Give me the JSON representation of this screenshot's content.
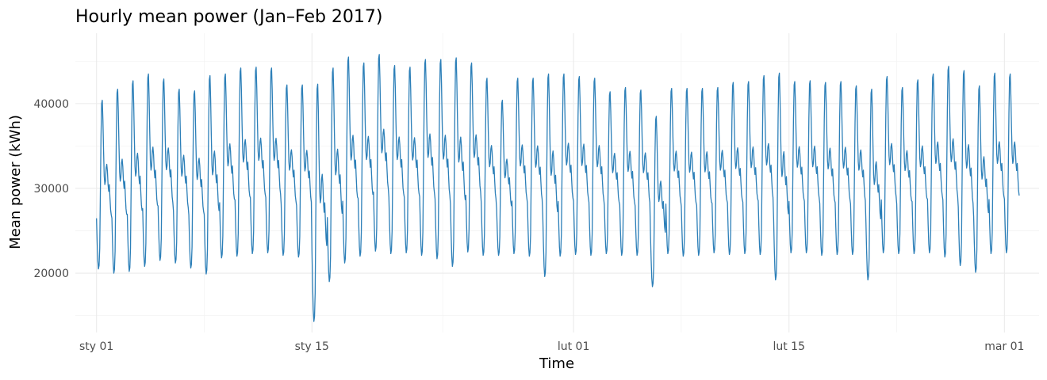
{
  "chart_data": {
    "type": "line",
    "title": "Hourly mean power (Jan–Feb 2017)",
    "xlabel": "Time",
    "ylabel": "Mean power (kWh)",
    "x_ticks": [
      {
        "date": "2017-01-01",
        "label": "sty 01"
      },
      {
        "date": "2017-01-15",
        "label": "sty 15"
      },
      {
        "date": "2017-02-01",
        "label": "lut 01"
      },
      {
        "date": "2017-02-15",
        "label": "lut 15"
      },
      {
        "date": "2017-03-01",
        "label": "mar 01"
      }
    ],
    "xlim": [
      "2016-12-30T15:00",
      "2017-03-03T06:00"
    ],
    "y_ticks": [
      20000,
      30000,
      40000
    ],
    "ylim": [
      13000,
      48300
    ],
    "grid": true,
    "color": "#2c7fb8",
    "series": [
      {
        "frequency": "daily (daily minimum and maximum of the hourly means, estimated)",
        "x": [
          "2017-01-01",
          "2017-01-02",
          "2017-01-03",
          "2017-01-04",
          "2017-01-05",
          "2017-01-06",
          "2017-01-07",
          "2017-01-08",
          "2017-01-09",
          "2017-01-10",
          "2017-01-11",
          "2017-01-12",
          "2017-01-13",
          "2017-01-14",
          "2017-01-15",
          "2017-01-16",
          "2017-01-17",
          "2017-01-18",
          "2017-01-19",
          "2017-01-20",
          "2017-01-21",
          "2017-01-22",
          "2017-01-23",
          "2017-01-24",
          "2017-01-25",
          "2017-01-26",
          "2017-01-27",
          "2017-01-28",
          "2017-01-29",
          "2017-01-30",
          "2017-01-31",
          "2017-02-01",
          "2017-02-02",
          "2017-02-03",
          "2017-02-04",
          "2017-02-05",
          "2017-02-06",
          "2017-02-07",
          "2017-02-08",
          "2017-02-09",
          "2017-02-10",
          "2017-02-11",
          "2017-02-12",
          "2017-02-13",
          "2017-02-14",
          "2017-02-15",
          "2017-02-16",
          "2017-02-17",
          "2017-02-18",
          "2017-02-19",
          "2017-02-20",
          "2017-02-21",
          "2017-02-22",
          "2017-02-23",
          "2017-02-24",
          "2017-02-25",
          "2017-02-26",
          "2017-02-27",
          "2017-02-28",
          "2017-03-01"
        ],
        "min": [
          20500,
          20000,
          20200,
          20800,
          21500,
          21200,
          20600,
          19900,
          21800,
          22000,
          22300,
          22400,
          22100,
          21900,
          14300,
          19000,
          21200,
          22000,
          22600,
          22300,
          22400,
          22100,
          21700,
          20800,
          22500,
          22100,
          22100,
          22300,
          22000,
          19600,
          22000,
          22200,
          22100,
          22300,
          22100,
          22100,
          18400,
          22300,
          22000,
          22100,
          22400,
          22200,
          22300,
          22200,
          19200,
          22400,
          22400,
          22100,
          22200,
          22200,
          19200,
          22400,
          22300,
          22300,
          22400,
          21900,
          20900,
          20100,
          22300,
          22400
        ],
        "max": [
          40400,
          41700,
          42700,
          43500,
          42900,
          41700,
          41500,
          43300,
          43500,
          44200,
          44300,
          44200,
          42200,
          42200,
          42300,
          44200,
          45500,
          44800,
          45800,
          44500,
          44300,
          45200,
          45200,
          45400,
          44800,
          43000,
          40400,
          43000,
          43000,
          43500,
          43500,
          43200,
          43000,
          41400,
          41900,
          41600,
          38500,
          41800,
          41800,
          41800,
          41900,
          42500,
          42600,
          43300,
          43600,
          42600,
          42700,
          42500,
          42600,
          42100,
          41700,
          43200,
          41900,
          42800,
          43500,
          44400,
          43900,
          42100,
          43600,
          43500
        ]
      }
    ]
  }
}
